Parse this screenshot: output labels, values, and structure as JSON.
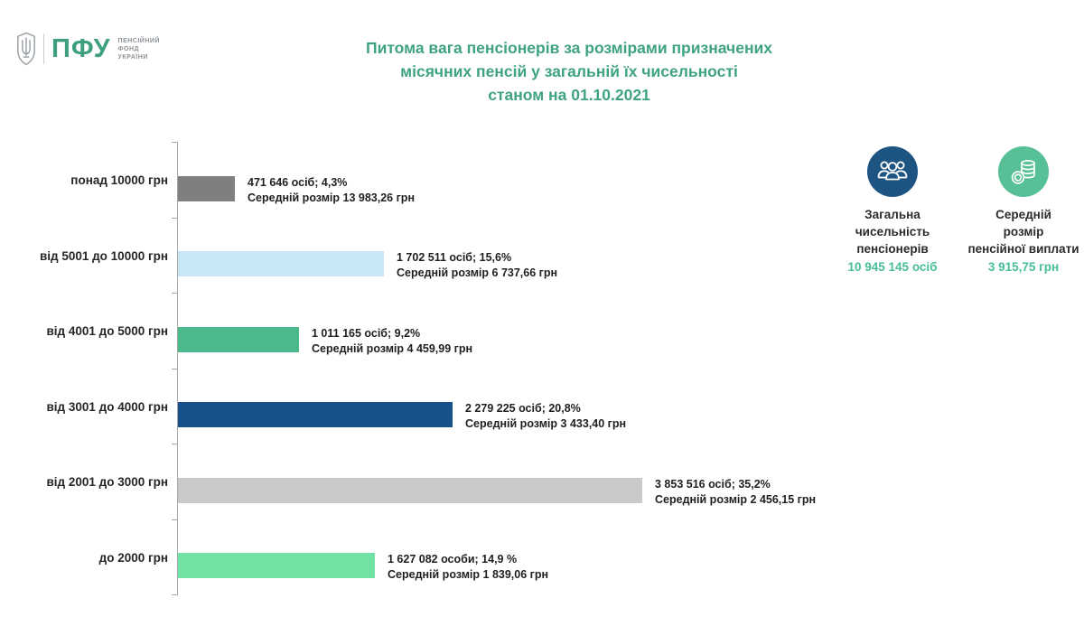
{
  "header": {
    "logo": {
      "abbr": "ПФУ",
      "org_lines": [
        "пенсійний",
        "фонд",
        "україни"
      ],
      "abbr_color": "#3d9f7f"
    },
    "title_lines": [
      "Питома вага пенсіонерів за розмірами призначених",
      "місячних пенсій у загальній їх чисельності",
      "станом на 01.10.2021"
    ],
    "title_color": "#3fa37f"
  },
  "chart_data": {
    "type": "bar",
    "orientation": "horizontal",
    "title": "Питома вага пенсіонерів за розмірами призначених місячних пенсій у загальній їх чисельності станом на 01.10.2021",
    "xlabel": "",
    "ylabel": "",
    "xlim_percent": [
      0,
      40
    ],
    "grid": false,
    "legend": "none",
    "categories": [
      "понад 10000 грн",
      "від 5001 до 10000 грн",
      "від 4001 до 5000 грн",
      "від 3001 до 4000 грн",
      "від 2001 до 3000 грн",
      "до 2000 грн"
    ],
    "values_percent": [
      4.3,
      15.6,
      9.2,
      20.8,
      35.2,
      14.9
    ],
    "counts": [
      471646,
      1702511,
      1011165,
      2279225,
      3853516,
      1627082
    ],
    "average_pension_uah": [
      13983.26,
      6737.66,
      4459.99,
      3433.4,
      2456.15,
      1839.06
    ],
    "bars": [
      {
        "category": "понад 10000 грн",
        "percent": 4.3,
        "count_label": "471 646 осіб;  4,3%",
        "avg_label": "Середній розмір 13 983,26 грн",
        "color": "#7f7f7f"
      },
      {
        "category": "від 5001 до 10000 грн",
        "percent": 15.6,
        "count_label": "1 702 511 осіб; 15,6%",
        "avg_label": "Середній розмір 6 737,66 грн",
        "color": "#c8e6f5"
      },
      {
        "category": "від 4001 до 5000 грн",
        "percent": 9.2,
        "count_label": "1 011 165 осіб; 9,2%",
        "avg_label": "Середній розмір 4 459,99 грн",
        "color": "#4cb98c"
      },
      {
        "category": "від 3001 до 4000 грн",
        "percent": 20.8,
        "count_label": "2 279 225 осіб; 20,8%",
        "avg_label": "Середній розмір 3 433,40 грн",
        "color": "#17518c"
      },
      {
        "category": "від 2001 до 3000 грн",
        "percent": 35.2,
        "count_label": "3 853 516 осіб; 35,2%",
        "avg_label": "Середній розмір 2 456,15 грн",
        "color": "#c9c9c9"
      },
      {
        "category": "до 2000 грн",
        "percent": 14.9,
        "count_label": "1 627 082 особи; 14,9 %",
        "avg_label": "Середній розмір 1 839,06 грн",
        "color": "#6fe2a4"
      }
    ]
  },
  "summary": {
    "total": {
      "icon": "people-icon",
      "circle_color": "#1d5482",
      "caption_lines": [
        "Загальна",
        "чисельність",
        "пенсіонерів"
      ],
      "value": "10 945 145 осіб",
      "value_color": "#47bd9b"
    },
    "average": {
      "icon": "coins-icon",
      "circle_color": "#57c096",
      "caption_lines": [
        "Середній",
        "розмір",
        "пенсійної виплати"
      ],
      "value": "3 915,75 грн",
      "value_color": "#47bd9b"
    }
  }
}
